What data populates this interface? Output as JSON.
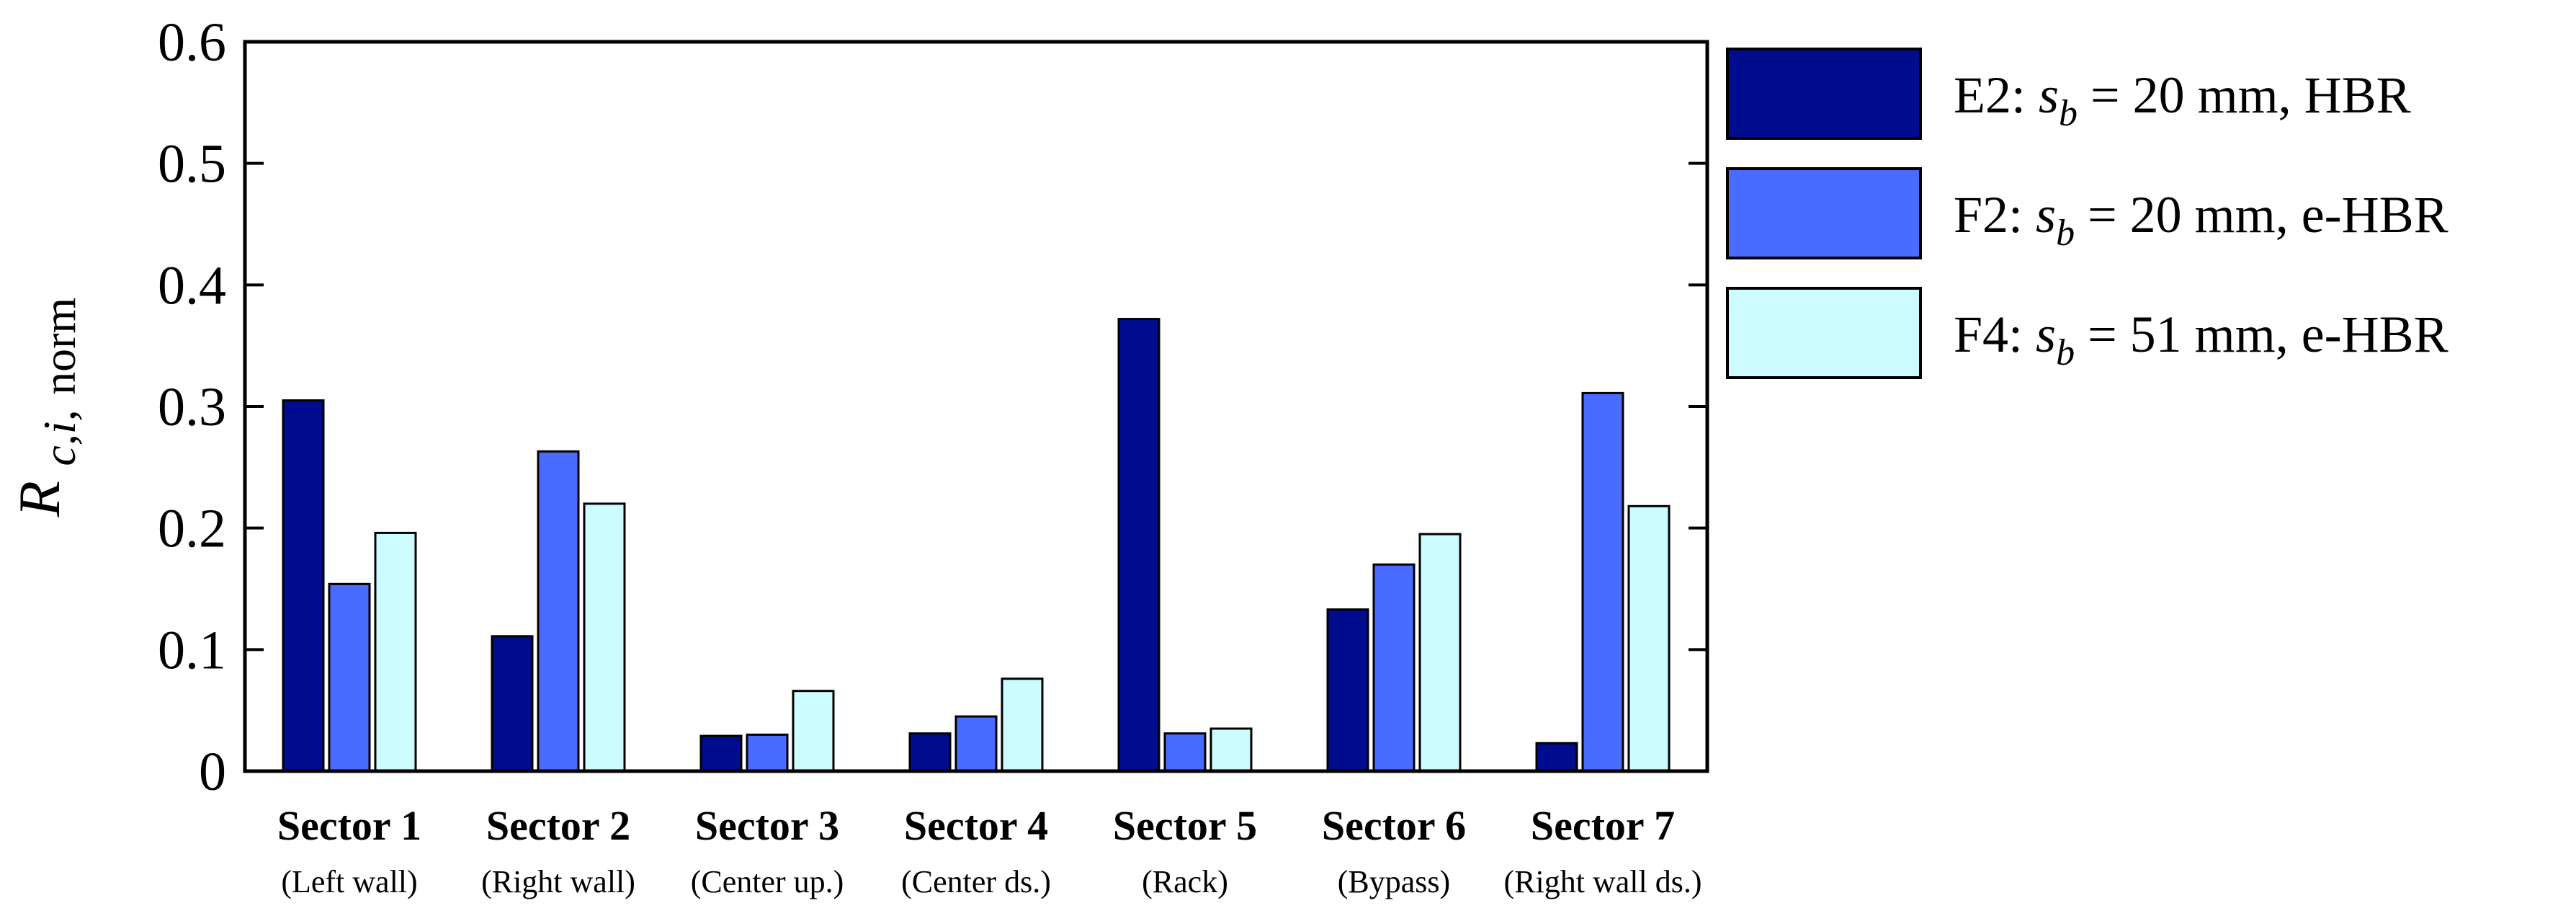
{
  "chart_data": {
    "type": "bar",
    "title": "",
    "xlabel": "",
    "ylabel": {
      "main": "R",
      "sub_italic": "c,i,",
      "sub_plain": "norm"
    },
    "ylim": [
      0,
      0.6
    ],
    "yticks": [
      0,
      0.1,
      0.2,
      0.3,
      0.4,
      0.5,
      0.6
    ],
    "ytick_labels": [
      "0",
      "0.1",
      "0.2",
      "0.3",
      "0.4",
      "0.5",
      "0.6"
    ],
    "grid": false,
    "legend_position": "right",
    "categories": [
      "Sector 1",
      "Sector 2",
      "Sector 3",
      "Sector 4",
      "Sector 5",
      "Sector 6",
      "Sector 7"
    ],
    "category_sublabels": [
      "(Left wall)",
      "(Right wall)",
      "(Center up.)",
      "(Center ds.)",
      "(Rack)",
      "(Bypass)",
      "(Right wall ds.)"
    ],
    "series": [
      {
        "name": "E2: s_b = 20 mm, HBR",
        "legend": {
          "prefix": "E2: ",
          "var": "s",
          "sub": "b",
          "suffix": " = 20 mm, HBR"
        },
        "color": "#000c8e",
        "values": [
          0.305,
          0.111,
          0.029,
          0.031,
          0.372,
          0.133,
          0.023
        ]
      },
      {
        "name": "F2: s_b = 20 mm, e-HBR",
        "legend": {
          "prefix": "F2: ",
          "var": "s",
          "sub": "b",
          "suffix": " = 20 mm, e-HBR"
        },
        "color": "#4a6bff",
        "values": [
          0.154,
          0.263,
          0.03,
          0.045,
          0.031,
          0.17,
          0.311
        ]
      },
      {
        "name": "F4: s_b = 51 mm, e-HBR",
        "legend": {
          "prefix": "F4: ",
          "var": "s",
          "sub": "b",
          "suffix": " = 51 mm, e-HBR"
        },
        "color": "#ccfcff",
        "values": [
          0.196,
          0.22,
          0.066,
          0.076,
          0.035,
          0.195,
          0.218
        ]
      }
    ]
  }
}
